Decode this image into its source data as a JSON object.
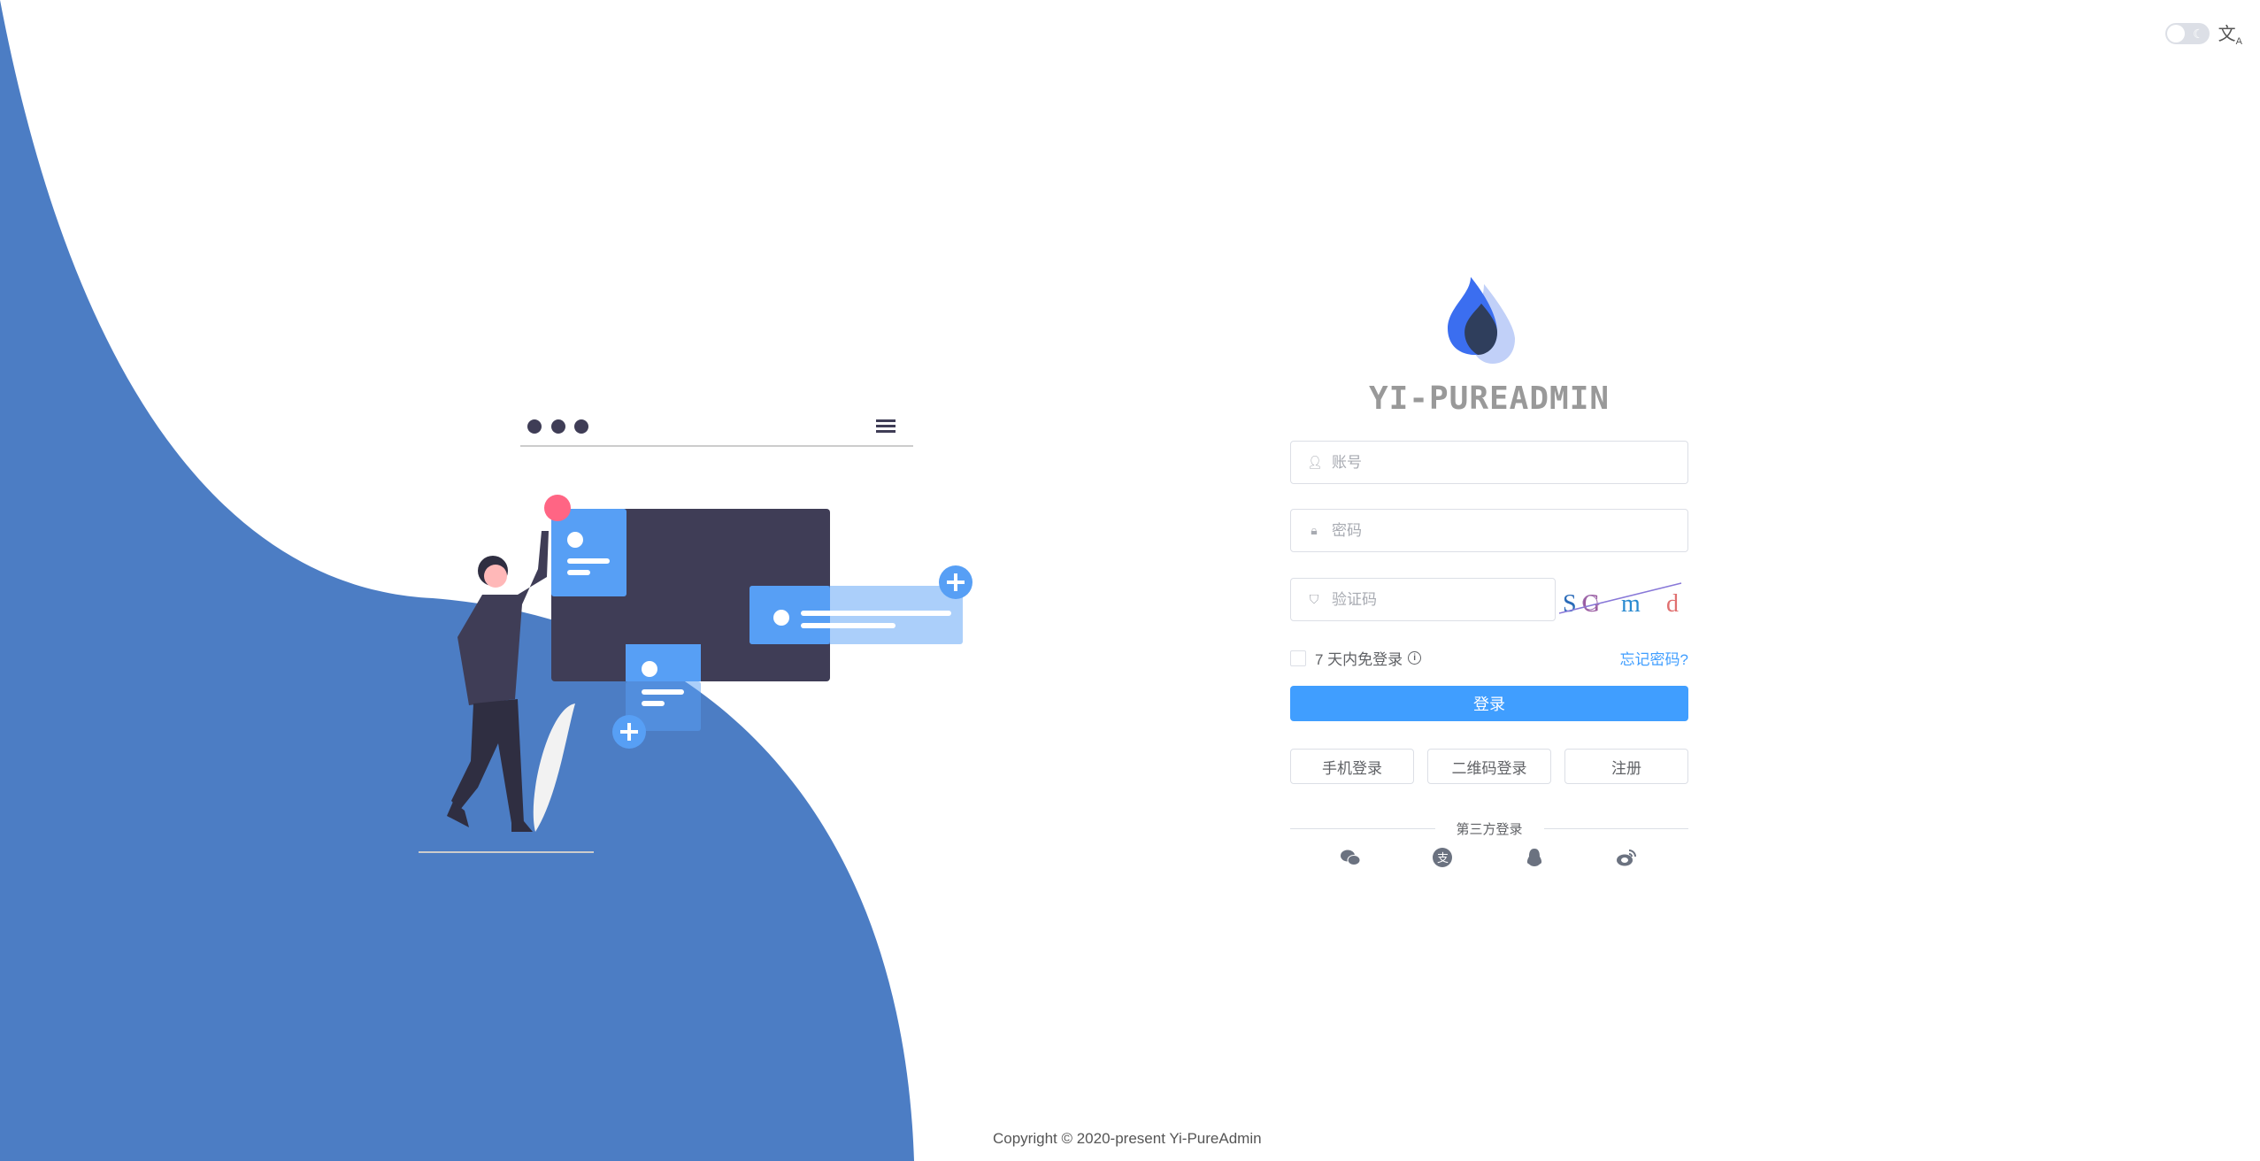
{
  "header": {
    "theme_toggle": "dark-mode-switch",
    "language_icon": "translate-icon"
  },
  "brand": {
    "title": "YI-PUREADMIN",
    "logo": "water-drop-logo",
    "colors": {
      "primary": "#3b6ef0",
      "dark": "#2f3e5c",
      "light": "#c1d0f8"
    }
  },
  "form": {
    "username_placeholder": "账号",
    "password_placeholder": "密码",
    "captcha_placeholder": "验证码",
    "captcha_text": [
      "S",
      "G",
      "m",
      "d"
    ],
    "remember_label": "7 天内免登录",
    "forgot_label": "忘记密码?",
    "login_label": "登录",
    "alt_buttons": [
      "手机登录",
      "二维码登录",
      "注册"
    ],
    "third_party_label": "第三方登录",
    "third_party_icons": [
      "wechat-icon",
      "alipay-icon",
      "qq-icon",
      "weibo-icon"
    ]
  },
  "footer": {
    "copyright": "Copyright © 2020-present Yi-PureAdmin"
  },
  "colors": {
    "accent": "#409eff",
    "background_wave": "#4c7dc4"
  }
}
